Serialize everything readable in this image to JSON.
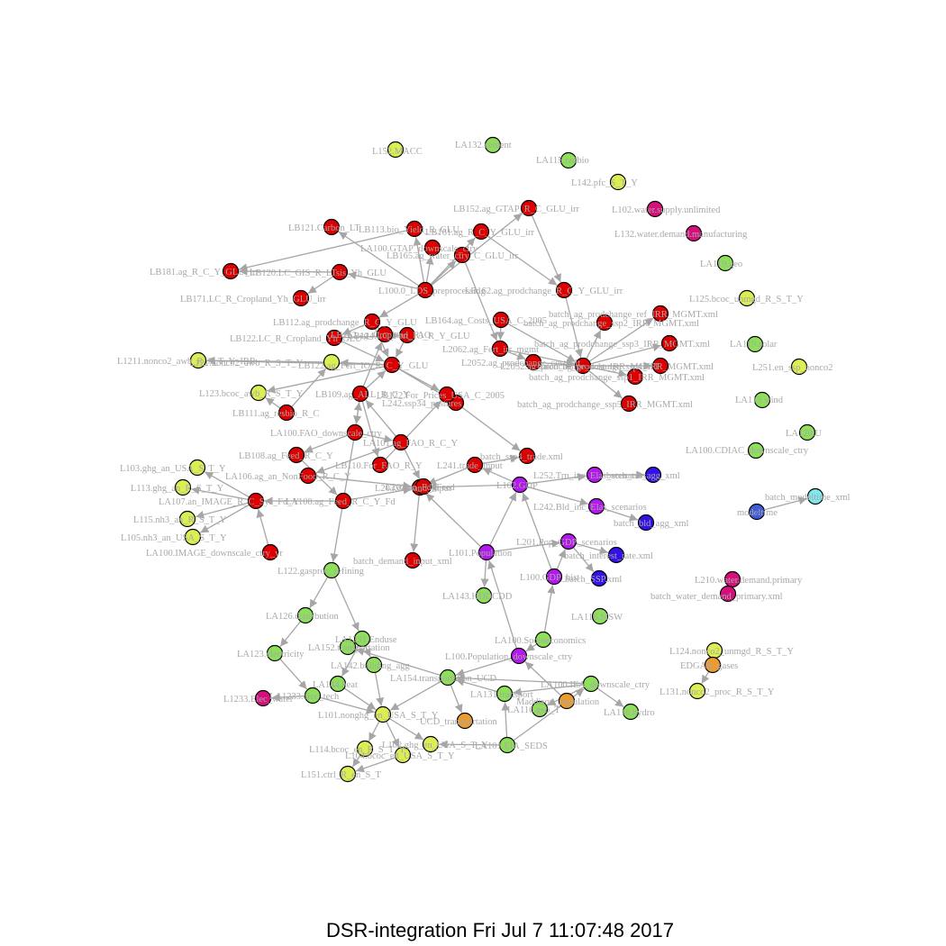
{
  "caption": "DSR-integration Fri Jul  7 11:07:48 2017",
  "colors": {
    "red": "#dd0000",
    "yellow": "#dcef52",
    "green": "#8ee05a",
    "purple": "#b418ec",
    "blue": "#3411e6",
    "magenta": "#d6107a",
    "orange": "#ec9c2f",
    "cyan": "#7fe8ee",
    "steelblue": "#3f5cd6",
    "edge": "#a6a6a6",
    "label": "#a8a8a8"
  },
  "graph": {
    "nodes": [
      {
        "id": "n1",
        "label": "L152.MACC",
        "color": "yellow"
      },
      {
        "id": "n2",
        "label": "LA132.cement",
        "color": "green"
      },
      {
        "id": "n3",
        "label": "LA115.radbio",
        "color": "green"
      },
      {
        "id": "n4",
        "label": "L142.pfc_S_T_Y",
        "color": "yellow"
      },
      {
        "id": "n5",
        "label": "L102.water.supply.unlimited",
        "color": "magenta"
      },
      {
        "id": "n6",
        "label": "L132.water.demand.manufacturing",
        "color": "magenta"
      },
      {
        "id": "n7",
        "label": "LA119.geo",
        "color": "green"
      },
      {
        "id": "n8",
        "label": "L125.bcoc_unmgd_R_S_T_Y",
        "color": "yellow"
      },
      {
        "id": "n9",
        "label": "LA119.solar",
        "color": "green"
      },
      {
        "id": "n10",
        "label": "L251.en_ssp_nonco2",
        "color": "yellow"
      },
      {
        "id": "n11",
        "label": "LA119.wind",
        "color": "green"
      },
      {
        "id": "n12",
        "label": "LA120.U",
        "color": "green"
      },
      {
        "id": "n13",
        "label": "LA100.CDIAC_downscale_ctry",
        "color": "green"
      },
      {
        "id": "n14",
        "label": "batch_modeltime_xml",
        "color": "cyan"
      },
      {
        "id": "n15",
        "label": "modeltime",
        "color": "steelblue"
      },
      {
        "id": "n16",
        "label": "L210.water.demand.primary",
        "color": "magenta"
      },
      {
        "id": "n17",
        "label": "batch_water_demand_primary.xml",
        "color": "magenta"
      },
      {
        "id": "n18",
        "label": "L124.nonco2_unmgd_R_S_T_Y",
        "color": "yellow"
      },
      {
        "id": "n19",
        "label": "EDGAR_gases",
        "color": "orange"
      },
      {
        "id": "n20",
        "label": "L131.nonco2_proc_R_S_T_Y",
        "color": "yellow"
      },
      {
        "id": "n21",
        "label": "LB152.ag_GTAP_R_C_GLU_irr",
        "color": "red"
      },
      {
        "id": "n22",
        "label": "LB121.Carbon_LT",
        "color": "red"
      },
      {
        "id": "n23",
        "label": "LB113.bio_Yield_R_GLU",
        "color": "red"
      },
      {
        "id": "n24",
        "label": "LB161.ag_R_C_Y_GLU_irr",
        "color": "red"
      },
      {
        "id": "n25",
        "label": "LA100.GTAP_downscale_ctry",
        "color": "red"
      },
      {
        "id": "n26",
        "label": "LB165.ag_water_ctry_C_GLU_irr",
        "color": "red"
      },
      {
        "id": "n27",
        "label": "LB181.ag_R_C_Y_GLU_irr",
        "color": "red"
      },
      {
        "id": "n28",
        "label": "LB171.LC_R_Cropland_Yh_GLU_irr",
        "color": "red"
      },
      {
        "id": "n29",
        "label": "LB120.LC_GIS_R_LTsis_Yh_GLU",
        "color": "red"
      },
      {
        "id": "n30",
        "label": "L100.0_LDS_preprocessing",
        "color": "red"
      },
      {
        "id": "n31",
        "label": "LB162.ag_prodchange_R_C_Y_GLU_irr",
        "color": "red"
      },
      {
        "id": "n32",
        "label": "LB112.ag_prodchange_R_C_Y_GLU",
        "color": "red"
      },
      {
        "id": "n33",
        "label": "LB164.ag_Costs_USA_C_2005",
        "color": "red"
      },
      {
        "id": "n34",
        "label": "batch_ag_prodchange_ssp2_IRR_MGMT.xml",
        "color": "red"
      },
      {
        "id": "n35",
        "label": "batch_ag_prodchange_ref_IRR_MGMT.xml",
        "color": "red"
      },
      {
        "id": "n36",
        "label": "LB122.LC_R_Cropland_Yh_GLU",
        "color": "red"
      },
      {
        "id": "n37",
        "label": "L2062.ag_Fert_irr_mgmt",
        "color": "red"
      },
      {
        "id": "n38",
        "label": "batch_ag_prodchange_ssp3_IRR_MGMT.xml",
        "color": "red"
      },
      {
        "id": "n39",
        "label": "L2052.ag_prodchange_cost_IRR_MGMT",
        "color": "red"
      },
      {
        "id": "n40",
        "label": "batch_ag_prodchange_ssp4_IRR_MGMT.xml",
        "color": "red"
      },
      {
        "id": "n41",
        "label": "batch_ag_prodchange_ssp1_IRR_MGMT.xml",
        "color": "red"
      },
      {
        "id": "n42",
        "label": "batch_ag_prodchange_ssp5_IRR_MGMT.xml",
        "color": "red"
      },
      {
        "id": "n43",
        "label": "L1211.nonco2_awb_R_S_T_Y_IRR",
        "color": "yellow"
      },
      {
        "id": "n44",
        "label": "L121.nonco2_awb_R_S_T_Y",
        "color": "yellow"
      },
      {
        "id": "n45",
        "label": "L123.bcoc_awb_R_S_T_Y",
        "color": "yellow"
      },
      {
        "id": "n46",
        "label": "LB122.ag_Fert_IO_R_C_Y_GLU",
        "color": "red"
      },
      {
        "id": "n47",
        "label": "L242.ssp34_pastures",
        "color": "red"
      },
      {
        "id": "n48",
        "label": "LB111.ag_resbio_R_C",
        "color": "red"
      },
      {
        "id": "n49",
        "label": "LA100.FAO_downscale_ctry",
        "color": "red"
      },
      {
        "id": "n50",
        "label": "LB108.ag_Feed_R_C_Y",
        "color": "red"
      },
      {
        "id": "n51",
        "label": "LA101.ag_FAO_R_C_Y",
        "color": "red"
      },
      {
        "id": "n52",
        "label": "L103.ghg_an_USA_S_T_Y",
        "color": "yellow"
      },
      {
        "id": "n53",
        "label": "L113.ghg_an_R_S_T_Y",
        "color": "yellow"
      },
      {
        "id": "n54",
        "label": "LA106.ag_an_NonFood_R_C_Y",
        "color": "red"
      },
      {
        "id": "n55",
        "label": "LA107.an_IMAGE_R_C_Sys_Fd_Y",
        "color": "red"
      },
      {
        "id": "n56",
        "label": "L115.nh3_an_R_S_T_Y",
        "color": "yellow"
      },
      {
        "id": "n57",
        "label": "L105.nh3_an_USA_S_T_Y",
        "color": "yellow"
      },
      {
        "id": "n58",
        "label": "LA100.IMAGE_downscale_ctry_yr",
        "color": "red"
      },
      {
        "id": "n59",
        "label": "L203.demand_input",
        "color": "red"
      },
      {
        "id": "n60",
        "label": "batch_ssp4_trade.xml",
        "color": "red"
      },
      {
        "id": "n61",
        "label": "L241.trade_input",
        "color": "red"
      },
      {
        "id": "n62",
        "label": "L102.GDP",
        "color": "purple"
      },
      {
        "id": "n63",
        "label": "L252.Trn_inc_Elas_scenarios",
        "color": "purple"
      },
      {
        "id": "n64",
        "label": "batch_trn_agg_xml",
        "color": "blue"
      },
      {
        "id": "n65",
        "label": "L242.Bld_inc_Elas_scenarios",
        "color": "purple"
      },
      {
        "id": "n66",
        "label": "batch_bld_agg_xml",
        "color": "blue"
      },
      {
        "id": "n67",
        "label": "batch_demand_input_xml",
        "color": "red"
      },
      {
        "id": "n68",
        "label": "L101.Population",
        "color": "purple"
      },
      {
        "id": "n69",
        "label": "L201.Pop_GDP_scenarios",
        "color": "purple"
      },
      {
        "id": "n70",
        "label": "batch_interest_rate.xml",
        "color": "blue"
      },
      {
        "id": "n71",
        "label": "L100.GDP_hist",
        "color": "purple"
      },
      {
        "id": "n72",
        "label": "batch_SSP.xml",
        "color": "blue"
      },
      {
        "id": "n73",
        "label": "L122.gasproc_refining",
        "color": "green"
      },
      {
        "id": "n74",
        "label": "LA143.HDDCDD",
        "color": "green"
      },
      {
        "id": "n75",
        "label": "LA126.distribution",
        "color": "green"
      },
      {
        "id": "n76",
        "label": "LA118.MSW",
        "color": "green"
      },
      {
        "id": "n77",
        "label": "LA1231.Enduse",
        "color": "green"
      },
      {
        "id": "n78",
        "label": "LA100.Socioeconomics",
        "color": "green"
      },
      {
        "id": "n79",
        "label": "LA123.electricity",
        "color": "green"
      },
      {
        "id": "n80",
        "label": "LA152.transportation",
        "color": "green"
      },
      {
        "id": "n81",
        "label": "L100.Population_downscale_ctry",
        "color": "purple"
      },
      {
        "id": "n82",
        "label": "LA142.building_agg",
        "color": "green"
      },
      {
        "id": "n83",
        "label": "LA154.transportation_UCD",
        "color": "green"
      },
      {
        "id": "n84",
        "label": "L1233.Elec_water",
        "color": "magenta"
      },
      {
        "id": "n85",
        "label": "LA1233.elec_tech",
        "color": "green"
      },
      {
        "id": "n86",
        "label": "LA144.heat",
        "color": "green"
      },
      {
        "id": "n87",
        "label": "LA100.IEA_downscale_ctry",
        "color": "green"
      },
      {
        "id": "n88",
        "label": "LA131.transport",
        "color": "green"
      },
      {
        "id": "n89",
        "label": "Maddison_population",
        "color": "orange"
      },
      {
        "id": "n90",
        "label": "LA116.geo_T",
        "color": "green"
      },
      {
        "id": "n91",
        "label": "LA116.hydro",
        "color": "green"
      },
      {
        "id": "n92",
        "label": "L101.nonghg_en_USA_S_T_Y",
        "color": "yellow"
      },
      {
        "id": "n93",
        "label": "UCD_transportation",
        "color": "orange"
      },
      {
        "id": "n94",
        "label": "L114.bcoc_en_R_S_T_Y",
        "color": "yellow"
      },
      {
        "id": "n95",
        "label": "L102.ghg_en_USA_S_T_Y",
        "color": "yellow"
      },
      {
        "id": "n96",
        "label": "L104.bcoc_en_USA_S_T_Y",
        "color": "yellow"
      },
      {
        "id": "n97",
        "label": "LA101.EIA_SEDS",
        "color": "green"
      },
      {
        "id": "n98",
        "label": "L151.ctrl_R_en_S_T",
        "color": "yellow"
      },
      {
        "id": "n99",
        "label": "LB162.ag_Cropland_FAO",
        "color": "red"
      },
      {
        "id": "n100",
        "label": "LB124.LC_Fert_IO_R_Y_GLU",
        "color": "red"
      },
      {
        "id": "n101",
        "label": "LB109.ag_ALL_R_C_Y",
        "color": "red"
      },
      {
        "id": "n102",
        "label": "LB110.For_FAO_R_Y",
        "color": "red"
      },
      {
        "id": "n103",
        "label": "LB122.For_Prices_USA_C_2005",
        "color": "red"
      },
      {
        "id": "n104",
        "label": "LA108.ag_Feed_R_C_Y_Fd",
        "color": "red"
      },
      {
        "id": "n105",
        "label": "L2052.ag_prodchange_cost_alt",
        "color": "red"
      },
      {
        "id": "n106",
        "label": "L202.an_Fd_Feed",
        "color": "red"
      }
    ],
    "edges": [
      [
        "n30",
        "n22"
      ],
      [
        "n30",
        "n23"
      ],
      [
        "n30",
        "n24"
      ],
      [
        "n30",
        "n25"
      ],
      [
        "n30",
        "n26"
      ],
      [
        "n30",
        "n29"
      ],
      [
        "n30",
        "n21"
      ],
      [
        "n29",
        "n27"
      ],
      [
        "n29",
        "n28"
      ],
      [
        "n23",
        "n27"
      ],
      [
        "n24",
        "n31"
      ],
      [
        "n21",
        "n31"
      ],
      [
        "n31",
        "n39"
      ],
      [
        "n39",
        "n34"
      ],
      [
        "n39",
        "n35"
      ],
      [
        "n39",
        "n38"
      ],
      [
        "n39",
        "n40"
      ],
      [
        "n39",
        "n41"
      ],
      [
        "n39",
        "n42"
      ],
      [
        "n32",
        "n36"
      ],
      [
        "n30",
        "n32"
      ],
      [
        "n32",
        "n46"
      ],
      [
        "n36",
        "n46"
      ],
      [
        "n33",
        "n39"
      ],
      [
        "n37",
        "n39"
      ],
      [
        "n46",
        "n44"
      ],
      [
        "n46",
        "n43"
      ],
      [
        "n46",
        "n45"
      ],
      [
        "n44",
        "n43"
      ],
      [
        "n48",
        "n44"
      ],
      [
        "n48",
        "n45"
      ],
      [
        "n46",
        "n103"
      ],
      [
        "n101",
        "n46"
      ],
      [
        "n49",
        "n101"
      ],
      [
        "n49",
        "n51"
      ],
      [
        "n49",
        "n50"
      ],
      [
        "n51",
        "n101"
      ],
      [
        "n51",
        "n54"
      ],
      [
        "n51",
        "n106"
      ],
      [
        "n50",
        "n104"
      ],
      [
        "n104",
        "n55"
      ],
      [
        "n55",
        "n53"
      ],
      [
        "n55",
        "n56"
      ],
      [
        "n55",
        "n57"
      ],
      [
        "n55",
        "n52"
      ],
      [
        "n58",
        "n55"
      ],
      [
        "n104",
        "n59"
      ],
      [
        "n106",
        "n59"
      ],
      [
        "n59",
        "n67"
      ],
      [
        "n54",
        "n59"
      ],
      [
        "n61",
        "n59"
      ],
      [
        "n62",
        "n61"
      ],
      [
        "n61",
        "n60"
      ],
      [
        "n62",
        "n59"
      ],
      [
        "n62",
        "n63"
      ],
      [
        "n62",
        "n65"
      ],
      [
        "n63",
        "n64"
      ],
      [
        "n65",
        "n66"
      ],
      [
        "n68",
        "n62"
      ],
      [
        "n68",
        "n69"
      ],
      [
        "n71",
        "n62"
      ],
      [
        "n69",
        "n70"
      ],
      [
        "n69",
        "n72"
      ],
      [
        "n71",
        "n69"
      ],
      [
        "n68",
        "n59"
      ],
      [
        "n81",
        "n68"
      ],
      [
        "n78",
        "n81"
      ],
      [
        "n78",
        "n71"
      ],
      [
        "n68",
        "n74"
      ],
      [
        "n81",
        "n83"
      ],
      [
        "n83",
        "n80"
      ],
      [
        "n83",
        "n93"
      ],
      [
        "n87",
        "n83"
      ],
      [
        "n87",
        "n88"
      ],
      [
        "n87",
        "n90"
      ],
      [
        "n87",
        "n91"
      ],
      [
        "n88",
        "n83"
      ],
      [
        "n89",
        "n81"
      ],
      [
        "n73",
        "n75"
      ],
      [
        "n73",
        "n77"
      ],
      [
        "n75",
        "n79"
      ],
      [
        "n77",
        "n82"
      ],
      [
        "n77",
        "n86"
      ],
      [
        "n79",
        "n85"
      ],
      [
        "n85",
        "n84"
      ],
      [
        "n85",
        "n92"
      ],
      [
        "n86",
        "n92"
      ],
      [
        "n82",
        "n92"
      ],
      [
        "n83",
        "n92"
      ],
      [
        "n92",
        "n94"
      ],
      [
        "n92",
        "n95"
      ],
      [
        "n92",
        "n96"
      ],
      [
        "n94",
        "n98"
      ],
      [
        "n96",
        "n98"
      ],
      [
        "n97",
        "n95"
      ],
      [
        "n97",
        "n88"
      ],
      [
        "n97",
        "n87"
      ],
      [
        "n16",
        "n17"
      ],
      [
        "n19",
        "n20"
      ],
      [
        "n19",
        "n18"
      ],
      [
        "n15",
        "n14"
      ],
      [
        "n99",
        "n32"
      ],
      [
        "n100",
        "n46"
      ],
      [
        "n101",
        "n102"
      ],
      [
        "n102",
        "n103"
      ],
      [
        "n101",
        "n49"
      ],
      [
        "n105",
        "n39"
      ],
      [
        "n26",
        "n37"
      ],
      [
        "n33",
        "n37"
      ],
      [
        "n49",
        "n73"
      ],
      [
        "n46",
        "n47"
      ],
      [
        "n47",
        "n60"
      ],
      [
        "n37",
        "n105"
      ],
      [
        "n101",
        "n99"
      ],
      [
        "n36",
        "n100"
      ]
    ]
  }
}
